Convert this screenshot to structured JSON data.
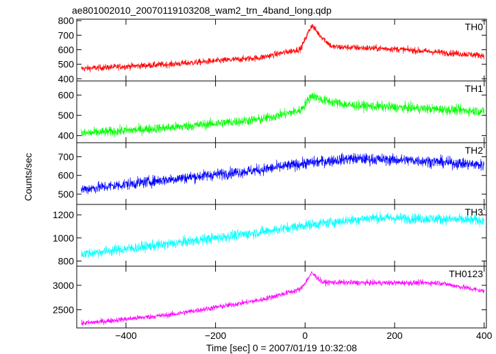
{
  "chart_data": {
    "type": "line",
    "title": "ae801002010_20070119103208_wam2_trn_4band_long.qdp",
    "xlabel": "Time [sec] 0 = 2007/01/19 10:32:08",
    "ylabel": "Counts/sec",
    "xlim": [
      -510,
      405
    ],
    "xticks": [
      -400,
      -200,
      0,
      200,
      400
    ],
    "xtick_labels": [
      "−400",
      "−200",
      "0",
      "200",
      "400"
    ],
    "grid": false,
    "panels": [
      {
        "name": "TH0",
        "color": "#ff0000",
        "ylim": [
          385,
          810
        ],
        "yticks": [
          400,
          500,
          600,
          700,
          800
        ],
        "trend": [
          [
            -500,
            470
          ],
          [
            -300,
            500
          ],
          [
            -100,
            545
          ],
          [
            -10,
            605
          ],
          [
            15,
            770
          ],
          [
            30,
            710
          ],
          [
            60,
            620
          ],
          [
            200,
            605
          ],
          [
            400,
            560
          ]
        ],
        "noise": 22
      },
      {
        "name": "TH1",
        "color": "#00ff00",
        "ylim": [
          365,
          670
        ],
        "yticks": [
          400,
          500,
          600
        ],
        "trend": [
          [
            -500,
            410
          ],
          [
            -300,
            440
          ],
          [
            -100,
            480
          ],
          [
            -10,
            525
          ],
          [
            15,
            600
          ],
          [
            40,
            575
          ],
          [
            100,
            550
          ],
          [
            400,
            520
          ]
        ],
        "noise": 24
      },
      {
        "name": "TH2",
        "color": "#0000ff",
        "ylim": [
          445,
          775
        ],
        "yticks": [
          500,
          600,
          700
        ],
        "trend": [
          [
            -500,
            525
          ],
          [
            -300,
            580
          ],
          [
            -100,
            630
          ],
          [
            0,
            665
          ],
          [
            100,
            690
          ],
          [
            250,
            680
          ],
          [
            400,
            655
          ]
        ],
        "noise": 30
      },
      {
        "name": "TH3",
        "color": "#00ffff",
        "ylim": [
          755,
          1290
        ],
        "yticks": [
          800,
          1000,
          1200
        ],
        "trend": [
          [
            -500,
            860
          ],
          [
            -300,
            950
          ],
          [
            -100,
            1050
          ],
          [
            0,
            1110
          ],
          [
            150,
            1175
          ],
          [
            300,
            1165
          ],
          [
            400,
            1150
          ]
        ],
        "noise": 45
      },
      {
        "name": "TH0123",
        "color": "#ff00ff",
        "ylim": [
          2130,
          3390
        ],
        "yticks": [
          2500,
          3000
        ],
        "trend": [
          [
            -500,
            2220
          ],
          [
            -300,
            2400
          ],
          [
            -100,
            2700
          ],
          [
            -10,
            2920
          ],
          [
            15,
            3250
          ],
          [
            40,
            3060
          ],
          [
            150,
            3050
          ],
          [
            300,
            3050
          ],
          [
            400,
            2880
          ]
        ],
        "noise": 55
      }
    ]
  }
}
